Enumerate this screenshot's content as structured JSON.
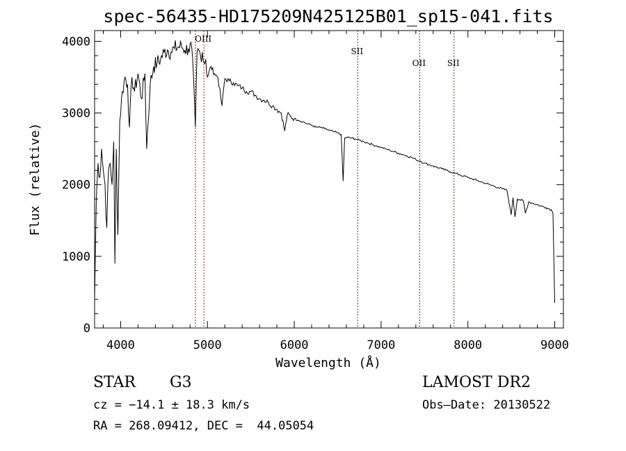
{
  "chart_data": {
    "type": "line",
    "title": "spec-56435-HD175209N425125B01_sp15-041.fits",
    "xlabel": "Wavelength (Å)",
    "ylabel": "Flux (relative)",
    "xlim": [
      3700,
      9100
    ],
    "ylim": [
      0,
      4150
    ],
    "x_ticks": [
      4000,
      5000,
      6000,
      7000,
      8000,
      9000
    ],
    "y_ticks": [
      0,
      1000,
      2000,
      3000,
      4000
    ],
    "grid": false,
    "line_color": "#000000",
    "marker_color": "#8b1a1a",
    "series": [
      {
        "x": [
          3700,
          3720,
          3740,
          3760,
          3780,
          3800,
          3820,
          3840,
          3860,
          3880,
          3900,
          3920,
          3934,
          3950,
          3968,
          3990,
          4020,
          4050,
          4080,
          4101,
          4130,
          4160,
          4200,
          4240,
          4280,
          4300,
          4340,
          4380,
          4420,
          4460,
          4500,
          4540,
          4580,
          4620,
          4660,
          4700,
          4740,
          4780,
          4820,
          4861,
          4880,
          4900,
          4920,
          4940,
          4960,
          4980,
          5000,
          5040,
          5080,
          5120,
          5167,
          5200,
          5250,
          5300,
          5350,
          5400,
          5450,
          5500,
          5550,
          5600,
          5650,
          5700,
          5750,
          5800,
          5850,
          5890,
          5920,
          5960,
          6000,
          6050,
          6100,
          6150,
          6200,
          6250,
          6300,
          6350,
          6400,
          6450,
          6500,
          6540,
          6563,
          6580,
          6620,
          6660,
          6700,
          6750,
          6800,
          6850,
          6900,
          6950,
          7000,
          7050,
          7100,
          7150,
          7200,
          7250,
          7300,
          7350,
          7400,
          7450,
          7500,
          7550,
          7600,
          7650,
          7700,
          7750,
          7800,
          7850,
          7900,
          7950,
          8000,
          8050,
          8100,
          8150,
          8200,
          8250,
          8300,
          8350,
          8400,
          8450,
          8498,
          8520,
          8542,
          8570,
          8600,
          8640,
          8662,
          8700,
          8750,
          8800,
          8850,
          8900,
          8940,
          8960,
          8980,
          9000
        ],
        "y": [
          400,
          1800,
          2300,
          2100,
          2500,
          2200,
          2000,
          1400,
          2200,
          2300,
          2000,
          2600,
          900,
          2500,
          1300,
          2900,
          3300,
          3500,
          3400,
          2800,
          3500,
          3300,
          3550,
          3200,
          3550,
          2500,
          3400,
          3650,
          3700,
          3750,
          3850,
          3880,
          3850,
          3900,
          3920,
          3930,
          3880,
          3900,
          3900,
          2800,
          3850,
          3880,
          3800,
          3850,
          3700,
          3750,
          3500,
          3650,
          3550,
          3500,
          3100,
          3480,
          3450,
          3420,
          3380,
          3350,
          3300,
          3300,
          3250,
          3200,
          3180,
          3150,
          3100,
          3050,
          3000,
          2750,
          2980,
          2950,
          2920,
          2900,
          2880,
          2850,
          2830,
          2800,
          2800,
          2780,
          2760,
          2740,
          2720,
          2700,
          2050,
          2650,
          2660,
          2650,
          2640,
          2620,
          2600,
          2580,
          2560,
          2540,
          2520,
          2500,
          2480,
          2460,
          2440,
          2420,
          2400,
          2380,
          2350,
          2330,
          2300,
          2280,
          2260,
          2240,
          2220,
          2200,
          2180,
          2160,
          2140,
          2120,
          2100,
          2080,
          2060,
          2040,
          2020,
          2000,
          1980,
          1960,
          1940,
          1920,
          1580,
          1820,
          1550,
          1800,
          1790,
          1770,
          1600,
          1760,
          1740,
          1720,
          1700,
          1680,
          1660,
          1650,
          1600,
          350
        ]
      }
    ],
    "markers": [
      {
        "x": 4861,
        "label": ""
      },
      {
        "x": 4959,
        "label": "OIII"
      },
      {
        "x": 6731,
        "label": "SII"
      },
      {
        "x": 7445,
        "label": "OII"
      },
      {
        "x": 7840,
        "label": "SII"
      }
    ]
  },
  "info": {
    "object_class": "STAR",
    "subclass": "G3",
    "survey": "LAMOST DR2",
    "redshift": "cz = −14.1 ± 18.3 km/s",
    "obs_date": "Obs–Date: 20130522",
    "coords": "RA = 268.09412, DEC =  44.05054"
  }
}
